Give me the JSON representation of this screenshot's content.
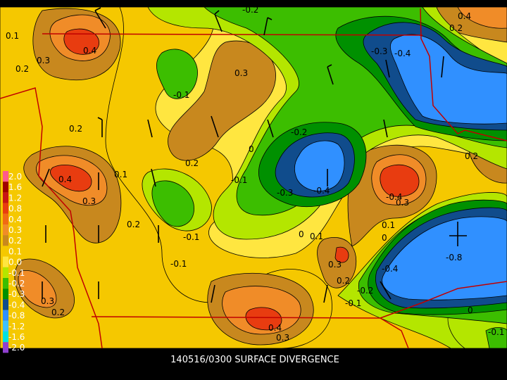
{
  "caption": "140516/0300 SURFACE DIVERGENCE",
  "legend": {
    "labels": [
      "2.0",
      "1.6",
      "1.2",
      "0.8",
      "0.4",
      "0.3",
      "0.2",
      "0.1",
      "0.0",
      "-0.1",
      "-0.2",
      "-0.3",
      "-0.4",
      "-0.8",
      "-1.2",
      "-1.6",
      "-2.0"
    ],
    "colors": [
      "#ff5a8c",
      "#a00000",
      "#c81414",
      "#e83c10",
      "#f06a14",
      "#f08c28",
      "#c8881e",
      "#f5c800",
      "#ffe640",
      "#b4e600",
      "#3cbe00",
      "#009000",
      "#104c8c",
      "#3090ff",
      "#40c0ff",
      "#00e0e0",
      "#9040d0"
    ]
  },
  "contour_labels": [
    "0.1",
    "0.2",
    "0.3",
    "0.4",
    "-0.2",
    "0.3",
    "-0.1",
    "-0.3",
    "-0.4",
    "0.4",
    "0.2",
    "0.2",
    "0.1",
    "0.4",
    "0.3",
    "0.2",
    "0.2",
    "-0.1",
    "0",
    "-0.2",
    "-0.3",
    "-0.4",
    "-0.4",
    "0.3",
    "0.2",
    "0",
    "0.1",
    "0.1",
    "0",
    "-0.8",
    "-0.4",
    "0.3",
    "0.2",
    "-0.2",
    "-0.1",
    "-0.1",
    "-0.1",
    "0.3",
    "0.2",
    "0.4",
    "0.3",
    "0",
    "-0.1"
  ]
}
